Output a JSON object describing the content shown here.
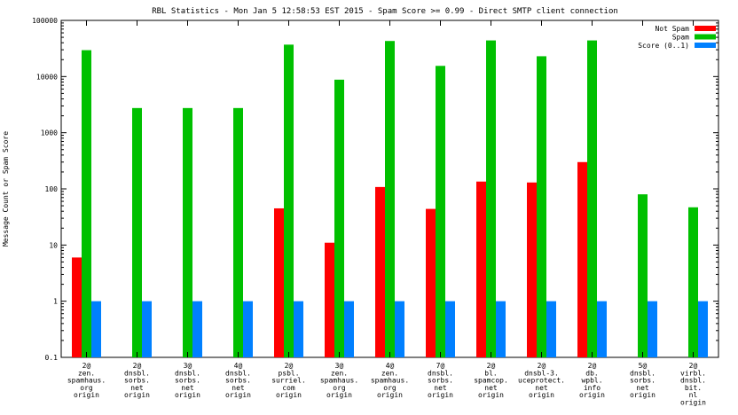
{
  "chart_data": {
    "type": "bar",
    "title": "RBL Statistics - Mon Jan  5 12:58:53 EST 2015 - Spam Score >= 0.99 - Direct SMTP client connection",
    "ylabel": "Message Count or Spam Score",
    "xlabel": "",
    "yscale": "log",
    "ylim": [
      0.1,
      100000
    ],
    "yticks": [
      "0.1",
      "1",
      "10",
      "100",
      "1000",
      "10000",
      "100000"
    ],
    "legend_position": "top-right",
    "grid": false,
    "categories": [
      [
        "2@",
        "zen.",
        "spamhaus.",
        "org",
        "origin"
      ],
      [
        "2@",
        "dnsbl.",
        "sorbs.",
        "net",
        "origin"
      ],
      [
        "3@",
        "dnsbl.",
        "sorbs.",
        "net",
        "origin"
      ],
      [
        "4@",
        "dnsbl.",
        "sorbs.",
        "net",
        "origin"
      ],
      [
        "2@",
        "psbl.",
        "surriel.",
        "com",
        "origin"
      ],
      [
        "3@",
        "zen.",
        "spamhaus.",
        "org",
        "origin"
      ],
      [
        "4@",
        "zen.",
        "spamhaus.",
        "org",
        "origin"
      ],
      [
        "7@",
        "dnsbl.",
        "sorbs.",
        "net",
        "origin"
      ],
      [
        "2@",
        "bl.",
        "spamcop.",
        "net",
        "origin"
      ],
      [
        "2@",
        "dnsbl-3.",
        "uceprotect.",
        "net",
        "origin"
      ],
      [
        "2@",
        "db.",
        "wpbl.",
        "info",
        "origin"
      ],
      [
        "5@",
        "dnsbl.",
        "sorbs.",
        "net",
        "origin"
      ],
      [
        "2@",
        "virbl.",
        "dnsbl.",
        "bit.",
        "nl",
        "origin"
      ]
    ],
    "series": [
      {
        "name": "Not Spam",
        "color": "#ff0000",
        "values": [
          6,
          null,
          null,
          null,
          45,
          11,
          108,
          44,
          135,
          130,
          300,
          null,
          null
        ]
      },
      {
        "name": "Spam",
        "color": "#00c000",
        "values": [
          29500,
          2750,
          2750,
          2750,
          37000,
          8800,
          43000,
          15500,
          44000,
          23000,
          44000,
          80,
          47
        ]
      },
      {
        "name": "Score (0..1)",
        "color": "#0080ff",
        "values": [
          1,
          1,
          1,
          1,
          1,
          1,
          1,
          1,
          1,
          1,
          1,
          1,
          1
        ]
      }
    ]
  }
}
